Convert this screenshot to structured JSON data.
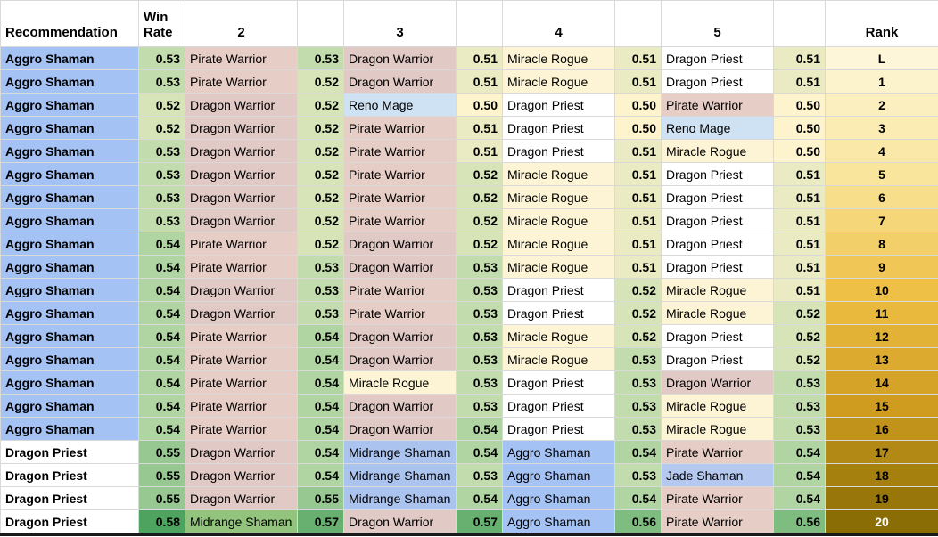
{
  "header": {
    "recommendation": "Recommendation",
    "win_rate": "Win Rate",
    "col2": "2",
    "col3": "3",
    "col4": "4",
    "col5": "5",
    "rank": "Rank"
  },
  "deck_colors": {
    "Aggro Shaman": "#a4c2f4",
    "Dragon Priest": "#ffffff",
    "Pirate Warrior": "#e6cdc5",
    "Dragon Warrior": "#e1cac6",
    "Reno Mage": "#cfe2f3",
    "Miracle Rogue": "#fcf4d4",
    "Midrange Shaman": "#abc3ef",
    "Jade Shaman": "#b5c8f0"
  },
  "winrate_scale": [
    {
      "v": 0.5,
      "c": "#fdf3cd"
    },
    {
      "v": 0.54,
      "c": "#b0d4a2"
    },
    {
      "v": 0.58,
      "c": "#4ea45e"
    }
  ],
  "rank_scale": [
    {
      "i": 0,
      "c": "#fdf6d8"
    },
    {
      "i": 5,
      "c": "#f9e59c"
    },
    {
      "i": 10,
      "c": "#eec045"
    },
    {
      "i": 15,
      "c": "#cf9c1f"
    },
    {
      "i": 20,
      "c": "#8a6d05"
    }
  ],
  "rows": [
    {
      "rec": "Aggro Shaman",
      "wr1": "0.53",
      "opp2": "Pirate Warrior",
      "wr2": "0.53",
      "opp3": "Dragon Warrior",
      "wr3": "0.51",
      "opp4": "Miracle Rogue",
      "wr4": "0.51",
      "opp5": "Dragon Priest",
      "wr5": "0.51",
      "rank": "L"
    },
    {
      "rec": "Aggro Shaman",
      "wr1": "0.53",
      "opp2": "Pirate Warrior",
      "wr2": "0.52",
      "opp3": "Dragon Warrior",
      "wr3": "0.51",
      "opp4": "Miracle Rogue",
      "wr4": "0.51",
      "opp5": "Dragon Priest",
      "wr5": "0.51",
      "rank": "1"
    },
    {
      "rec": "Aggro Shaman",
      "wr1": "0.52",
      "opp2": "Dragon Warrior",
      "wr2": "0.52",
      "opp3": "Reno Mage",
      "wr3": "0.50",
      "opp4": "Dragon Priest",
      "wr4": "0.50",
      "opp5": "Pirate Warrior",
      "wr5": "0.50",
      "rank": "2"
    },
    {
      "rec": "Aggro Shaman",
      "wr1": "0.52",
      "opp2": "Dragon Warrior",
      "wr2": "0.52",
      "opp3": "Pirate Warrior",
      "wr3": "0.51",
      "opp4": "Dragon Priest",
      "wr4": "0.50",
      "opp5": "Reno Mage",
      "wr5": "0.50",
      "rank": "3"
    },
    {
      "rec": "Aggro Shaman",
      "wr1": "0.53",
      "opp2": "Dragon Warrior",
      "wr2": "0.52",
      "opp3": "Pirate Warrior",
      "wr3": "0.51",
      "opp4": "Dragon Priest",
      "wr4": "0.51",
      "opp5": "Miracle Rogue",
      "wr5": "0.50",
      "rank": "4"
    },
    {
      "rec": "Aggro Shaman",
      "wr1": "0.53",
      "opp2": "Dragon Warrior",
      "wr2": "0.52",
      "opp3": "Pirate Warrior",
      "wr3": "0.52",
      "opp4": "Miracle Rogue",
      "wr4": "0.51",
      "opp5": "Dragon Priest",
      "wr5": "0.51",
      "rank": "5"
    },
    {
      "rec": "Aggro Shaman",
      "wr1": "0.53",
      "opp2": "Dragon Warrior",
      "wr2": "0.52",
      "opp3": "Pirate Warrior",
      "wr3": "0.52",
      "opp4": "Miracle Rogue",
      "wr4": "0.51",
      "opp5": "Dragon Priest",
      "wr5": "0.51",
      "rank": "6"
    },
    {
      "rec": "Aggro Shaman",
      "wr1": "0.53",
      "opp2": "Dragon Warrior",
      "wr2": "0.52",
      "opp3": "Pirate Warrior",
      "wr3": "0.52",
      "opp4": "Miracle Rogue",
      "wr4": "0.51",
      "opp5": "Dragon Priest",
      "wr5": "0.51",
      "rank": "7"
    },
    {
      "rec": "Aggro Shaman",
      "wr1": "0.54",
      "opp2": "Pirate Warrior",
      "wr2": "0.52",
      "opp3": "Dragon Warrior",
      "wr3": "0.52",
      "opp4": "Miracle Rogue",
      "wr4": "0.51",
      "opp5": "Dragon Priest",
      "wr5": "0.51",
      "rank": "8"
    },
    {
      "rec": "Aggro Shaman",
      "wr1": "0.54",
      "opp2": "Pirate Warrior",
      "wr2": "0.53",
      "opp3": "Dragon Warrior",
      "wr3": "0.53",
      "opp4": "Miracle Rogue",
      "wr4": "0.51",
      "opp5": "Dragon Priest",
      "wr5": "0.51",
      "rank": "9"
    },
    {
      "rec": "Aggro Shaman",
      "wr1": "0.54",
      "opp2": "Dragon Warrior",
      "wr2": "0.53",
      "opp3": "Pirate Warrior",
      "wr3": "0.53",
      "opp4": "Dragon Priest",
      "wr4": "0.52",
      "opp5": "Miracle Rogue",
      "wr5": "0.51",
      "rank": "10"
    },
    {
      "rec": "Aggro Shaman",
      "wr1": "0.54",
      "opp2": "Dragon Warrior",
      "wr2": "0.53",
      "opp3": "Pirate Warrior",
      "wr3": "0.53",
      "opp4": "Dragon Priest",
      "wr4": "0.52",
      "opp5": "Miracle Rogue",
      "wr5": "0.52",
      "rank": "11"
    },
    {
      "rec": "Aggro Shaman",
      "wr1": "0.54",
      "opp2": "Pirate Warrior",
      "wr2": "0.54",
      "opp3": "Dragon Warrior",
      "wr3": "0.53",
      "opp4": "Miracle Rogue",
      "wr4": "0.52",
      "opp5": "Dragon Priest",
      "wr5": "0.52",
      "rank": "12"
    },
    {
      "rec": "Aggro Shaman",
      "wr1": "0.54",
      "opp2": "Pirate Warrior",
      "wr2": "0.54",
      "opp3": "Dragon Warrior",
      "wr3": "0.53",
      "opp4": "Miracle Rogue",
      "wr4": "0.53",
      "opp5": "Dragon Priest",
      "wr5": "0.52",
      "rank": "13"
    },
    {
      "rec": "Aggro Shaman",
      "wr1": "0.54",
      "opp2": "Pirate Warrior",
      "wr2": "0.54",
      "opp3": "Miracle Rogue",
      "wr3": "0.53",
      "opp4": "Dragon Priest",
      "wr4": "0.53",
      "opp5": "Dragon Warrior",
      "wr5": "0.53",
      "rank": "14"
    },
    {
      "rec": "Aggro Shaman",
      "wr1": "0.54",
      "opp2": "Pirate Warrior",
      "wr2": "0.54",
      "opp3": "Dragon Warrior",
      "wr3": "0.53",
      "opp4": "Dragon Priest",
      "wr4": "0.53",
      "opp5": "Miracle Rogue",
      "wr5": "0.53",
      "rank": "15"
    },
    {
      "rec": "Aggro Shaman",
      "wr1": "0.54",
      "opp2": "Pirate Warrior",
      "wr2": "0.54",
      "opp3": "Dragon Warrior",
      "wr3": "0.54",
      "opp4": "Dragon Priest",
      "wr4": "0.53",
      "opp5": "Miracle Rogue",
      "wr5": "0.53",
      "rank": "16"
    },
    {
      "rec": "Dragon Priest",
      "wr1": "0.55",
      "opp2": "Dragon Warrior",
      "wr2": "0.54",
      "opp3": "Midrange Shaman",
      "wr3": "0.54",
      "opp4": "Aggro Shaman",
      "wr4": "0.54",
      "opp5": "Pirate Warrior",
      "wr5": "0.54",
      "rank": "17"
    },
    {
      "rec": "Dragon Priest",
      "wr1": "0.55",
      "opp2": "Dragon Warrior",
      "wr2": "0.54",
      "opp3": "Midrange Shaman",
      "wr3": "0.53",
      "opp4": "Aggro Shaman",
      "wr4": "0.53",
      "opp5": "Jade Shaman",
      "wr5": "0.54",
      "rank": "18"
    },
    {
      "rec": "Dragon Priest",
      "wr1": "0.55",
      "opp2": "Dragon Warrior",
      "wr2": "0.55",
      "opp3": "Midrange Shaman",
      "wr3": "0.54",
      "opp4": "Aggro Shaman",
      "wr4": "0.54",
      "opp5": "Pirate Warrior",
      "wr5": "0.54",
      "rank": "19"
    },
    {
      "rec": "Dragon Priest",
      "wr1": "0.58",
      "opp2": "Midrange Shaman",
      "opp2_bg": "#93c47d",
      "wr2": "0.57",
      "opp3": "Dragon Warrior",
      "wr3": "0.57",
      "opp4": "Aggro Shaman",
      "wr4": "0.56",
      "opp5": "Pirate Warrior",
      "wr5": "0.56",
      "rank": "20",
      "rank_fg": "#ffffff"
    }
  ]
}
